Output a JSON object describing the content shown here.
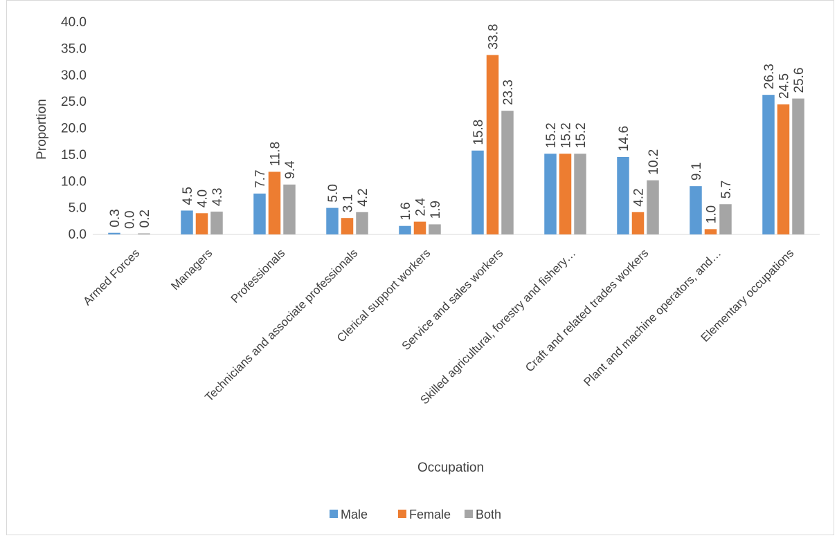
{
  "chart_data": {
    "type": "bar",
    "title": "",
    "xlabel": "Occupation",
    "ylabel": "Proportion",
    "ylim": [
      0,
      40
    ],
    "yticks": [
      "0.0",
      "5.0",
      "10.0",
      "15.0",
      "20.0",
      "25.0",
      "30.0",
      "35.0",
      "40.0"
    ],
    "categories": [
      "Armed Forces",
      "Managers",
      "Professionals",
      "Technicians and associate professionals",
      "Clerical support workers",
      "Service and sales workers",
      "Skilled agricultural, forestry and fishery…",
      "Craft and related trades workers",
      "Plant and machine operators, and…",
      "Elementary occupations"
    ],
    "series": [
      {
        "name": "Male",
        "color": "#5b9bd5",
        "values": [
          0.3,
          4.5,
          7.7,
          5.0,
          1.6,
          15.8,
          15.2,
          14.6,
          9.1,
          26.3
        ],
        "labels": [
          "0.3",
          "4.5",
          "7.7",
          "5.0",
          "1.6",
          "15.8",
          "15.2",
          "14.6",
          "9.1",
          "26.3"
        ]
      },
      {
        "name": "Female",
        "color": "#ed7d31",
        "values": [
          0.0,
          4.0,
          11.8,
          3.1,
          2.4,
          33.8,
          15.2,
          4.2,
          1.0,
          24.5
        ],
        "labels": [
          "0.0",
          "4.0",
          "11.8",
          "3.1",
          "2.4",
          "33.8",
          "15.2",
          "4.2",
          "1.0",
          "24.5"
        ]
      },
      {
        "name": "Both",
        "color": "#a5a5a5",
        "values": [
          0.2,
          4.3,
          9.4,
          4.2,
          1.9,
          23.3,
          15.2,
          10.2,
          5.7,
          25.6
        ],
        "labels": [
          "0.2",
          "4.3",
          "9.4",
          "4.2",
          "1.9",
          "23.3",
          "15.2",
          "10.2",
          "5.7",
          "25.6"
        ]
      }
    ],
    "grid": false,
    "legend": "bottom"
  }
}
